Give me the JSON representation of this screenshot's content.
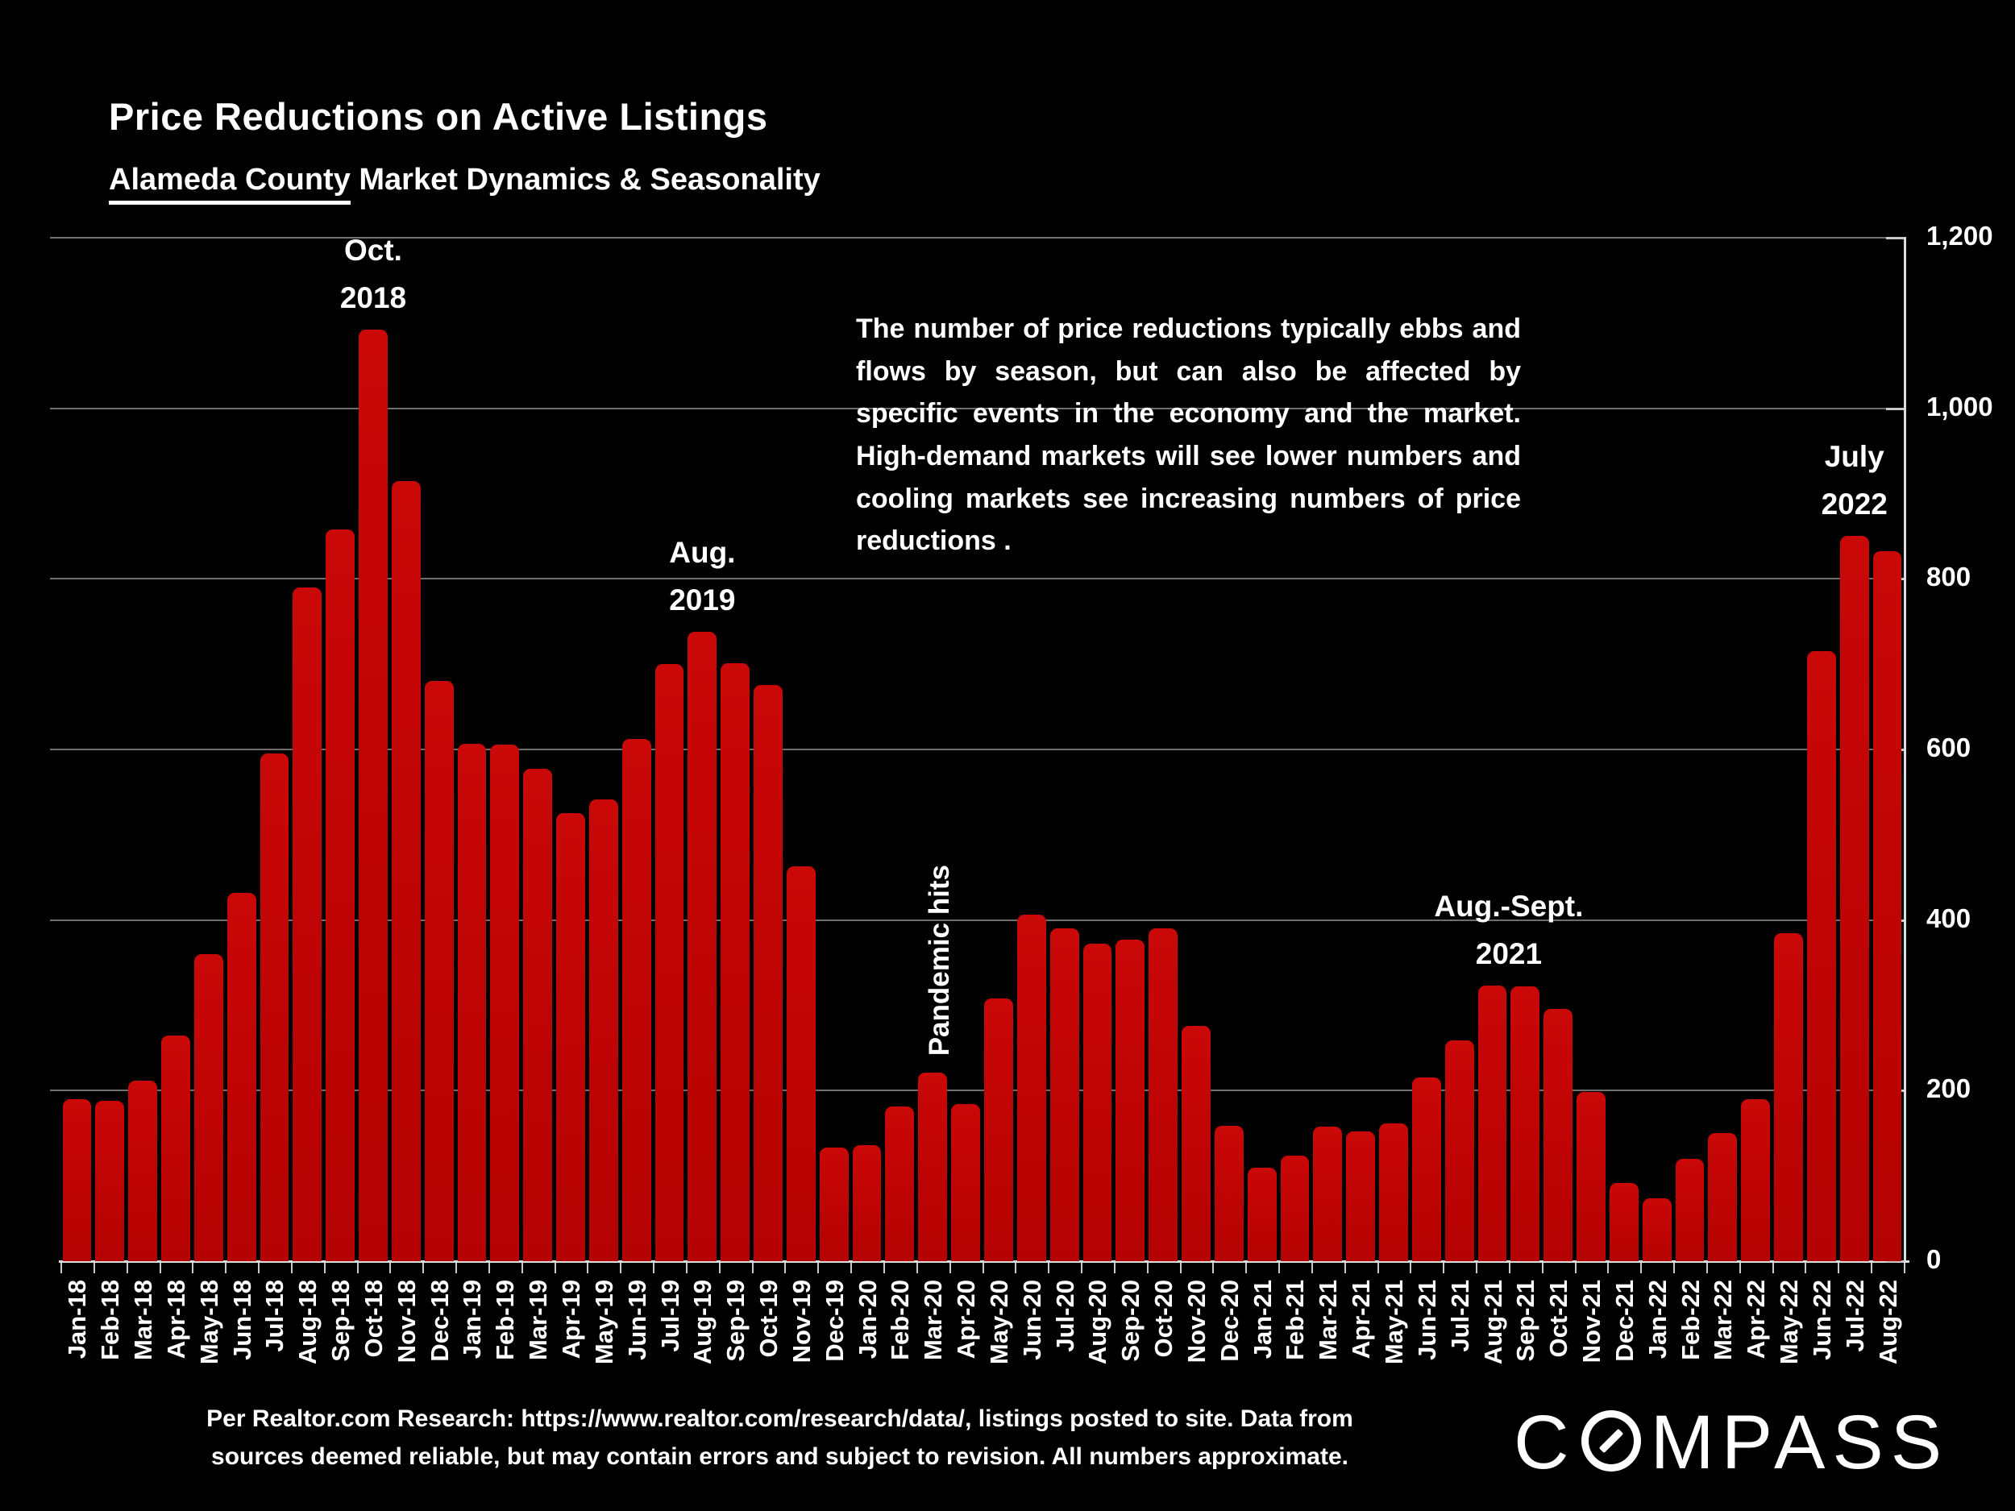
{
  "header": {
    "title": "Price Reductions on Active Listings",
    "subtitle_underlined": "Alameda County",
    "subtitle_rest": " Market Dynamics & Seasonality"
  },
  "commentary": "The number of price reductions typically ebbs and flows by season, but can also be affected by specific events in the economy and the market. High-demand markets will see lower numbers and cooling markets see increasing numbers of price reductions .",
  "chart_data": {
    "type": "bar",
    "title": "Price Reductions on Active Listings",
    "xlabel": "",
    "ylabel": "",
    "ylim": [
      0,
      1200
    ],
    "y_ticks": [
      0,
      200,
      400,
      600,
      800,
      1000,
      1200
    ],
    "y_tick_labels": [
      "0",
      "200",
      "400",
      "600",
      "800",
      "1,000",
      "1,200"
    ],
    "grid": "horizontal",
    "legend_position": "none",
    "bar_color": "#c00505",
    "grid_color": "#6e6e6e",
    "axis_color": "#dcdcdc",
    "background_color": "#000000",
    "categories": [
      "Jan-18",
      "Feb-18",
      "Mar-18",
      "Apr-18",
      "May-18",
      "Jun-18",
      "Jul-18",
      "Aug-18",
      "Sep-18",
      "Oct-18",
      "Nov-18",
      "Dec-18",
      "Jan-19",
      "Feb-19",
      "Mar-19",
      "Apr-19",
      "May-19",
      "Jun-19",
      "Jul-19",
      "Aug-19",
      "Sep-19",
      "Oct-19",
      "Nov-19",
      "Dec-19",
      "Jan-20",
      "Feb-20",
      "Mar-20",
      "Apr-20",
      "May-20",
      "Jun-20",
      "Jul-20",
      "Aug-20",
      "Sep-20",
      "Oct-20",
      "Nov-20",
      "Dec-20",
      "Jan-21",
      "Feb-21",
      "Mar-21",
      "Apr-21",
      "May-21",
      "Jun-21",
      "Jul-21",
      "Aug-21",
      "Sep-21",
      "Oct-21",
      "Nov-21",
      "Dec-21",
      "Jan-22",
      "Feb-22",
      "Mar-22",
      "Apr-22",
      "May-22",
      "Jun-22",
      "Jul-22",
      "Aug-22"
    ],
    "values": [
      190,
      188,
      212,
      265,
      360,
      432,
      595,
      790,
      858,
      1092,
      915,
      680,
      607,
      606,
      577,
      525,
      541,
      612,
      700,
      738,
      701,
      676,
      463,
      133,
      136,
      181,
      221,
      184,
      308,
      406,
      390,
      372,
      377,
      390,
      276,
      159,
      110,
      124,
      158,
      152,
      162,
      215,
      259,
      323,
      322,
      296,
      198,
      92,
      74,
      120,
      150,
      190,
      385,
      715,
      850,
      832
    ],
    "annotations": [
      {
        "id": "oct-2018",
        "lines": [
          "Oct.",
          "2018"
        ],
        "anchor": "Oct-18"
      },
      {
        "id": "aug-2019",
        "lines": [
          "Aug.",
          "2019"
        ],
        "anchor": "Aug-19"
      },
      {
        "id": "pandemic-hits",
        "lines": [
          "Pandemic hits"
        ],
        "anchor": "Apr-20",
        "rotated": true
      },
      {
        "id": "aug-sept-2021",
        "lines": [
          "Aug.-Sept.",
          "2021"
        ],
        "anchor": "Aug-21",
        "anchor2": "Sep-21"
      },
      {
        "id": "july-2022",
        "lines": [
          "July",
          "2022"
        ],
        "anchor": "Jul-22"
      }
    ]
  },
  "footer": {
    "lines": [
      "Per Realtor.com Research:  https://www.realtor.com/research/data/, listings posted to site. Data from",
      "sources deemed reliable, but may contain errors and subject to revision. All numbers approximate."
    ]
  },
  "logo": {
    "left": "C",
    "o_icon": "compass-slashed-o",
    "right": "MPASS"
  }
}
